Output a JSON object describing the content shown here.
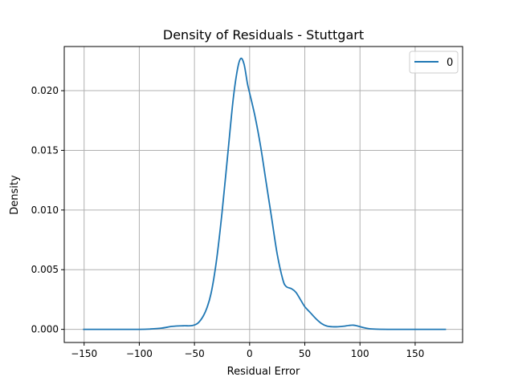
{
  "chart_data": {
    "type": "line",
    "title": "Density of Residuals - Stuttgart",
    "xlabel": "Residual Error",
    "ylabel": "Density",
    "xlim": [
      -168,
      193
    ],
    "ylim": [
      -0.0011,
      0.0237
    ],
    "xticks": [
      -150,
      -100,
      -50,
      0,
      50,
      100,
      150
    ],
    "xtick_labels": [
      "−150",
      "−100",
      "−50",
      "0",
      "50",
      "100",
      "150"
    ],
    "yticks": [
      0.0,
      0.005,
      0.01,
      0.015,
      0.02
    ],
    "ytick_labels": [
      "0.000",
      "0.005",
      "0.010",
      "0.015",
      "0.020"
    ],
    "grid": true,
    "legend_position": "top-right",
    "series": [
      {
        "name": "0",
        "color": "#1f77b4",
        "points": [
          [
            -151,
            0.0
          ],
          [
            -120,
            0.0
          ],
          [
            -100,
            0.0
          ],
          [
            -90,
            3e-05
          ],
          [
            -80,
            0.0001
          ],
          [
            -70,
            0.00025
          ],
          [
            -60,
            0.0003
          ],
          [
            -52,
            0.00032
          ],
          [
            -46,
            0.0006
          ],
          [
            -40,
            0.0015
          ],
          [
            -35,
            0.003
          ],
          [
            -30,
            0.0058
          ],
          [
            -25,
            0.0098
          ],
          [
            -20,
            0.0145
          ],
          [
            -15,
            0.0192
          ],
          [
            -11,
            0.0218
          ],
          [
            -8,
            0.0227
          ],
          [
            -5,
            0.0222
          ],
          [
            -2,
            0.0206
          ],
          [
            0,
            0.0198
          ],
          [
            5,
            0.0178
          ],
          [
            10,
            0.0153
          ],
          [
            15,
            0.0123
          ],
          [
            20,
            0.0093
          ],
          [
            25,
            0.0063
          ],
          [
            30,
            0.0042
          ],
          [
            33,
            0.0036
          ],
          [
            38,
            0.0034
          ],
          [
            42,
            0.0031
          ],
          [
            46,
            0.0025
          ],
          [
            50,
            0.0019
          ],
          [
            55,
            0.0014
          ],
          [
            60,
            0.0009
          ],
          [
            65,
            0.0005
          ],
          [
            70,
            0.00028
          ],
          [
            75,
            0.00022
          ],
          [
            80,
            0.00022
          ],
          [
            85,
            0.00026
          ],
          [
            90,
            0.00033
          ],
          [
            94,
            0.00035
          ],
          [
            98,
            0.00028
          ],
          [
            103,
            0.00015
          ],
          [
            108,
            6e-05
          ],
          [
            115,
            2e-05
          ],
          [
            130,
            0.0
          ],
          [
            150,
            0.0
          ],
          [
            178,
            0.0
          ]
        ]
      }
    ]
  }
}
